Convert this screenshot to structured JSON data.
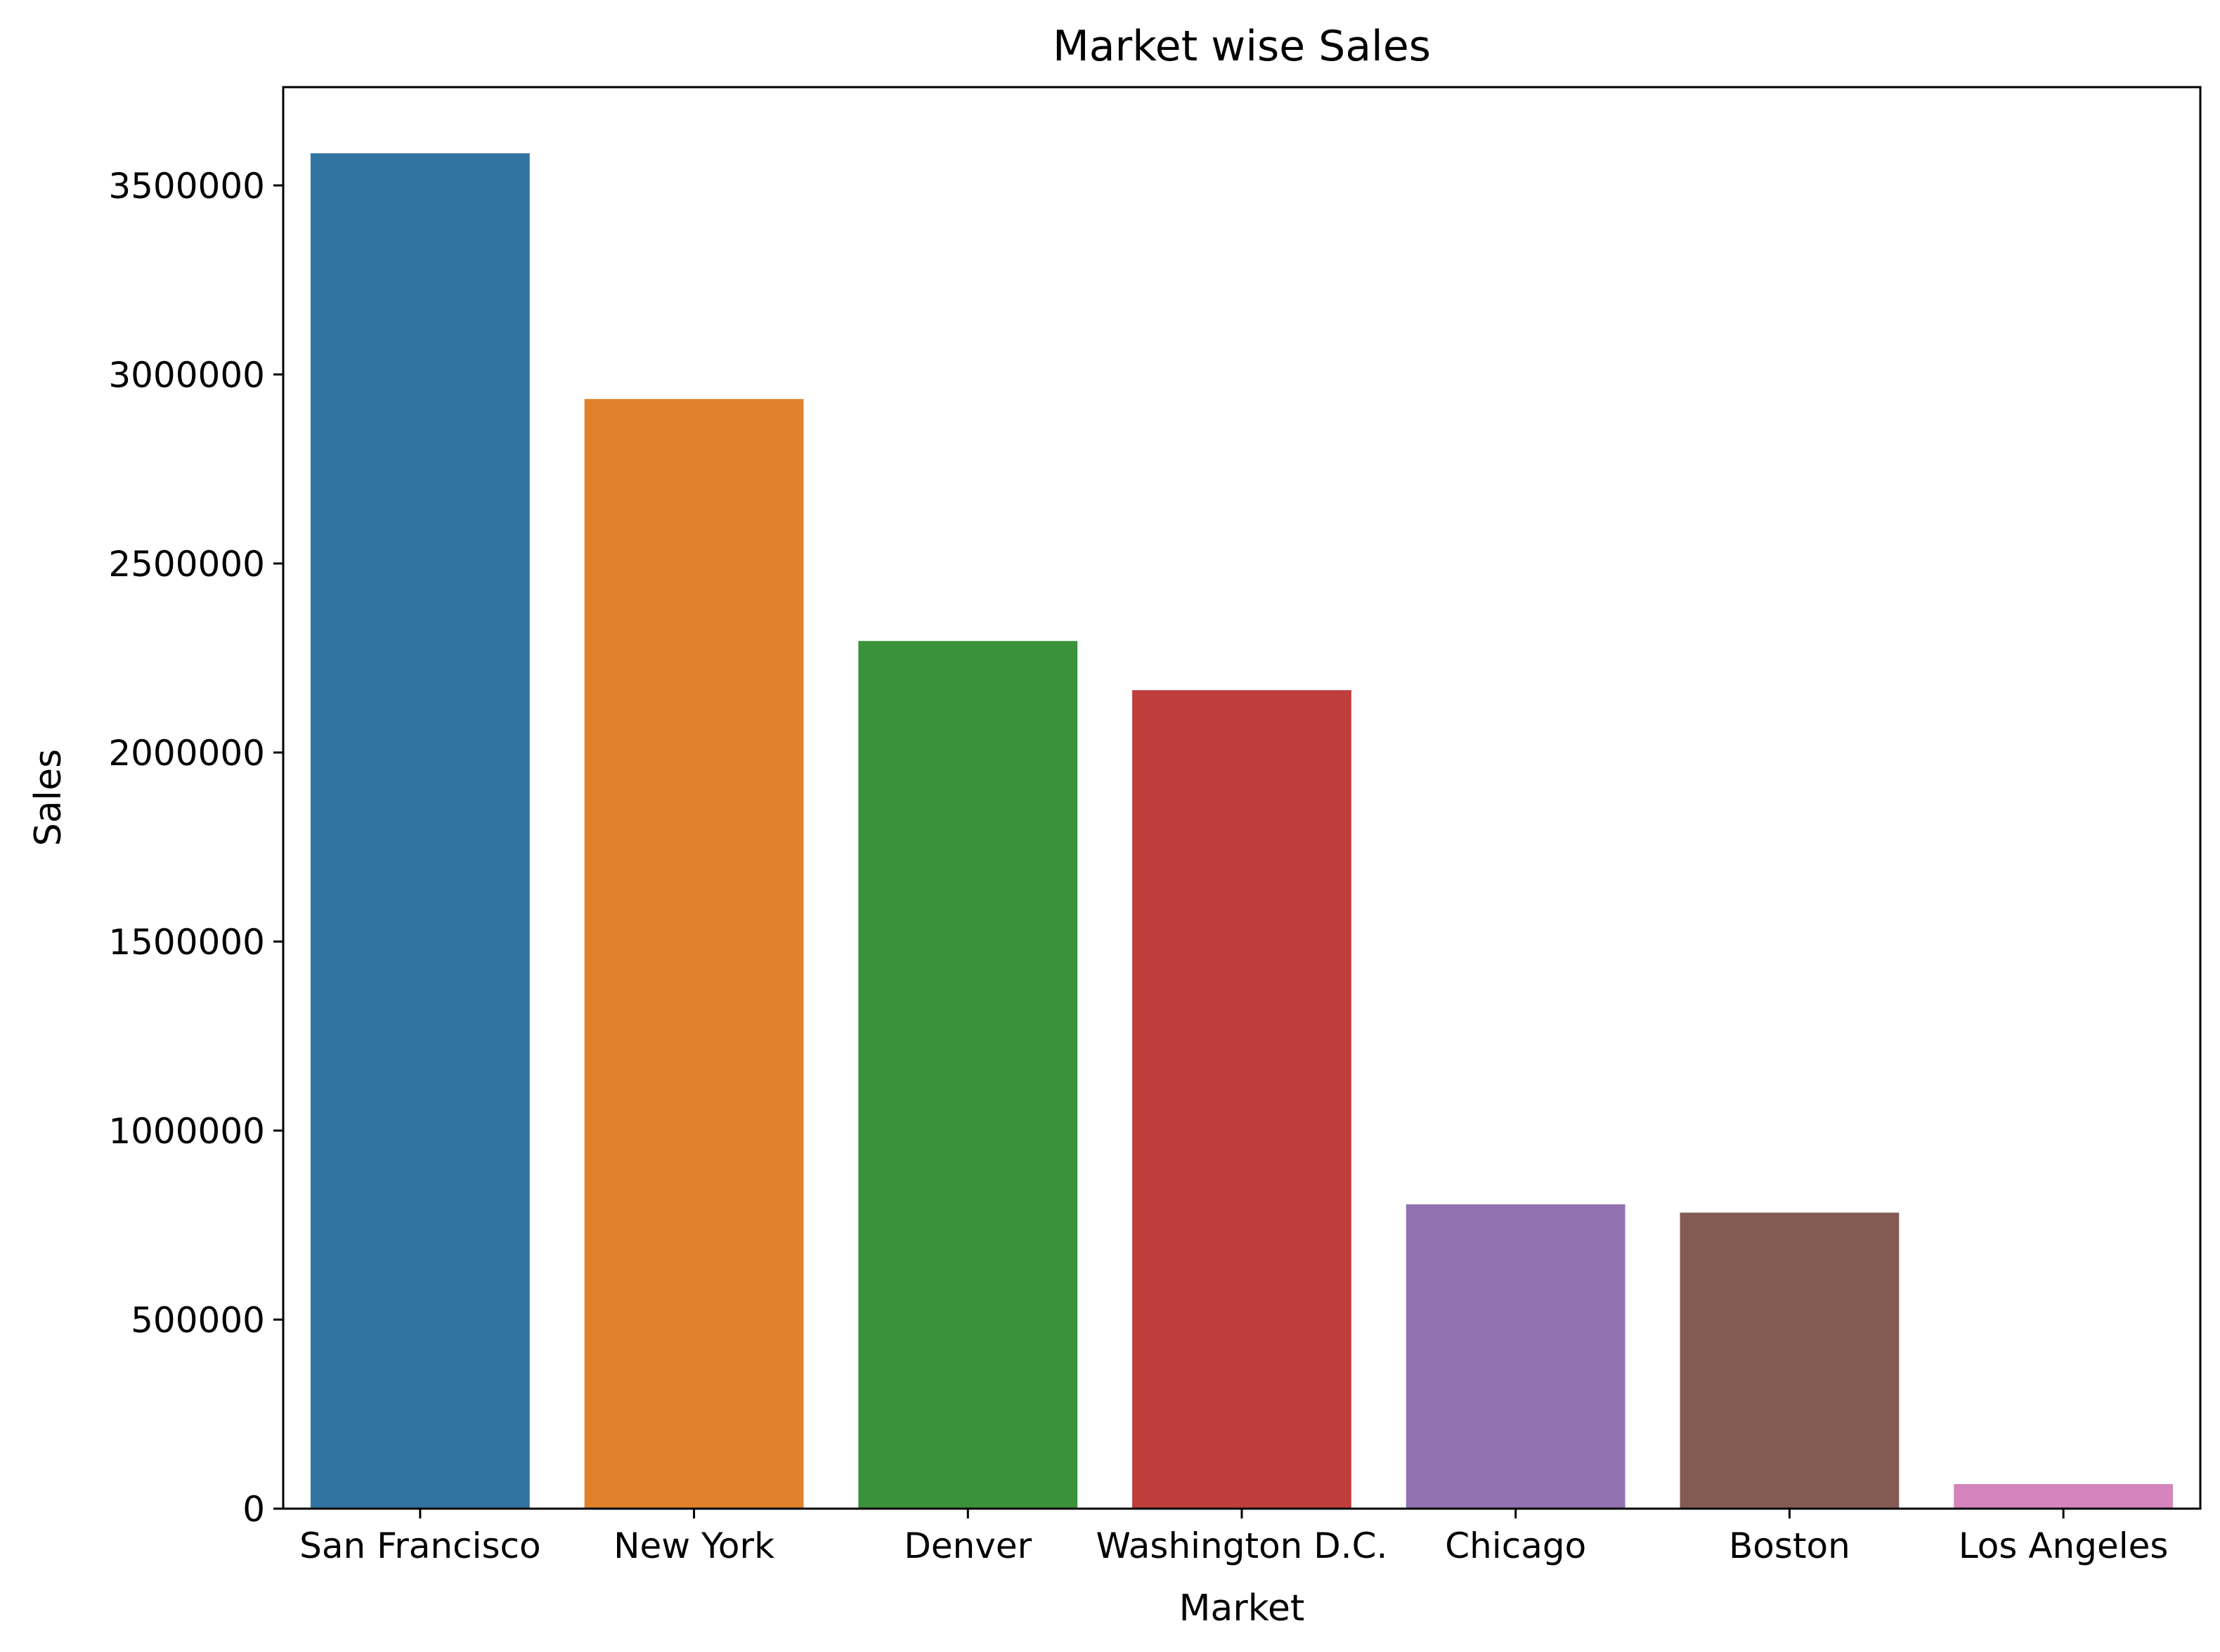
{
  "chart_data": {
    "type": "bar",
    "title": "Market wise Sales",
    "xlabel": "Market",
    "ylabel": "Sales",
    "categories": [
      "San Francisco",
      "New York",
      "Denver",
      "Washington D.C.",
      "Chicago",
      "Boston",
      "Los Angeles"
    ],
    "values": [
      3585000,
      2935000,
      2295000,
      2165000,
      805000,
      783000,
      65000
    ],
    "colors": [
      "#3274a1",
      "#e1812c",
      "#3a923a",
      "#c03d3e",
      "#9372b2",
      "#845b53",
      "#d684bd"
    ],
    "ylim": [
      0,
      3760000
    ],
    "yticks": [
      0,
      500000,
      1000000,
      1500000,
      2000000,
      2500000,
      3000000,
      3500000
    ],
    "ytick_labels": [
      "0",
      "500000",
      "1000000",
      "1500000",
      "2000000",
      "2500000",
      "3000000",
      "3500000"
    ],
    "grid": false,
    "legend": "none"
  }
}
